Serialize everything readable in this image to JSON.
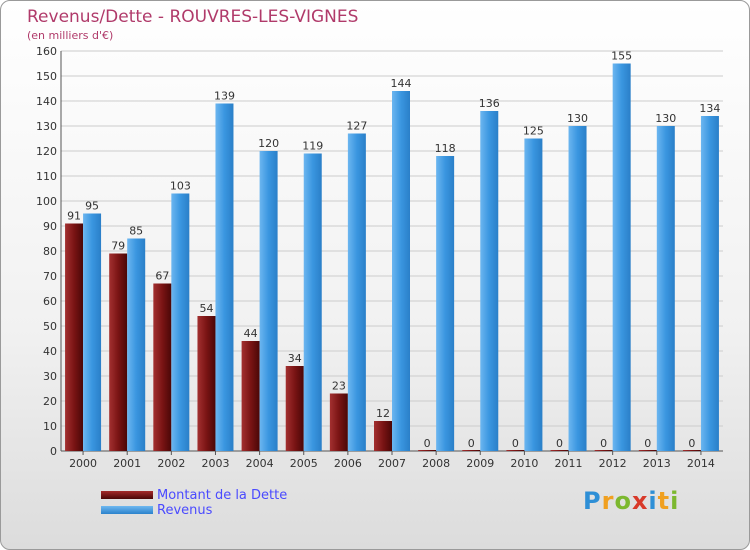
{
  "header": {
    "title": "Revenus/Dette - ROUVRES-LES-VIGNES",
    "subtitle": "(en milliers d'€)"
  },
  "colors": {
    "title": "#b03a6a",
    "debt": "#7a1414",
    "revenue": "#3a96e0",
    "grid": "#cccccc",
    "legend_text": "#4a4aff"
  },
  "legend": {
    "items": [
      {
        "label": "Montant de la Dette",
        "color": "#7a1414"
      },
      {
        "label": "Revenus",
        "color": "#3a96e0"
      }
    ]
  },
  "brand": {
    "letters": [
      "P",
      "r",
      "o",
      "x",
      "i",
      "t",
      "i"
    ]
  },
  "chart_data": {
    "type": "bar",
    "title": "Revenus/Dette - ROUVRES-LES-VIGNES",
    "subtitle": "(en milliers d'€)",
    "categories": [
      "2000",
      "2001",
      "2002",
      "2003",
      "2004",
      "2005",
      "2006",
      "2007",
      "2008",
      "2009",
      "2010",
      "2011",
      "2012",
      "2013",
      "2014"
    ],
    "series": [
      {
        "name": "Montant de la Dette",
        "values": [
          91,
          79,
          67,
          54,
          44,
          34,
          23,
          12,
          0,
          0,
          0,
          0,
          0,
          0,
          0
        ]
      },
      {
        "name": "Revenus",
        "values": [
          95,
          85,
          103,
          139,
          120,
          119,
          127,
          144,
          118,
          136,
          125,
          130,
          155,
          130,
          134
        ]
      }
    ],
    "ylim": [
      0,
      160
    ],
    "yticks": [
      0,
      10,
      20,
      30,
      40,
      50,
      60,
      70,
      80,
      90,
      100,
      110,
      120,
      130,
      140,
      150,
      160
    ],
    "xlabel": "",
    "ylabel": "",
    "grid": true,
    "legend_position": "bottom-left"
  }
}
